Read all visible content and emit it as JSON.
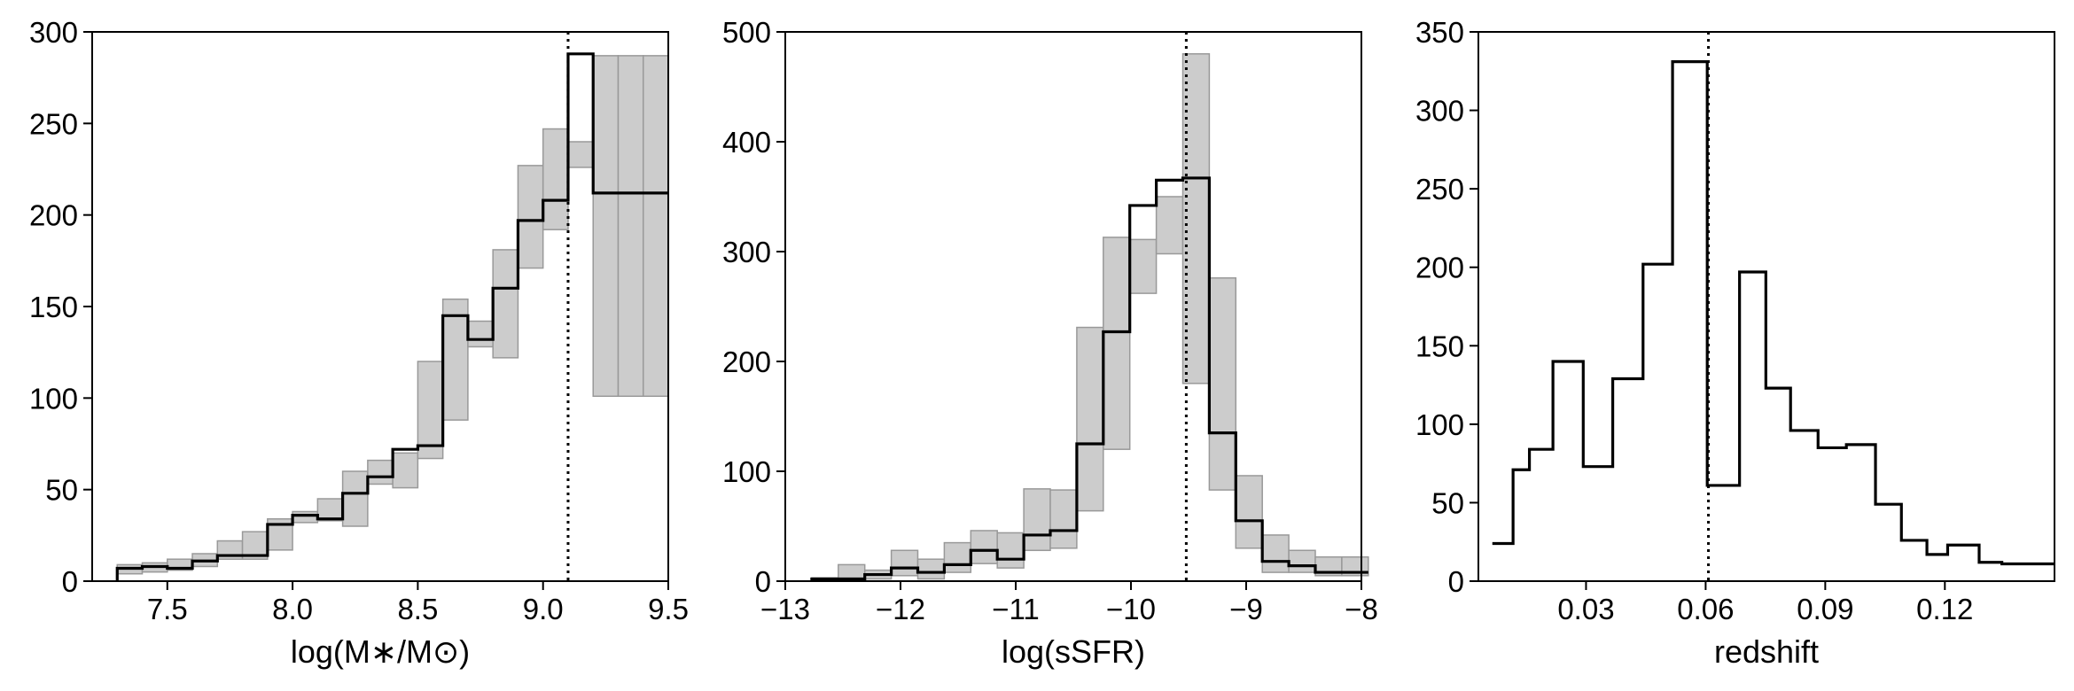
{
  "figure": {
    "background": "#ffffff",
    "line_color": "#000000",
    "band_fill": "#cccccc",
    "band_stroke": "#999999"
  },
  "chart_data": [
    {
      "type": "histogram",
      "title": "",
      "xlabel": "log(M∗/M⊙)",
      "ylabel": "",
      "xlim": [
        7.2,
        9.5
      ],
      "ylim": [
        0,
        300
      ],
      "xticks": [
        7.5,
        8.0,
        8.5,
        9.0,
        9.5
      ],
      "xtick_labels": [
        "7.5",
        "8.0",
        "8.5",
        "9.0",
        "9.5"
      ],
      "yticks": [
        0,
        50,
        100,
        150,
        200,
        250,
        300
      ],
      "ytick_labels": [
        "0",
        "50",
        "100",
        "150",
        "200",
        "250",
        "300"
      ],
      "vline": 9.1,
      "bin_edges": [
        7.3,
        7.4,
        7.5,
        7.6,
        7.7,
        7.8,
        7.9,
        8.0,
        8.1,
        8.2,
        8.3,
        8.4,
        8.5,
        8.6,
        8.7,
        8.8,
        8.9,
        9.0,
        9.1,
        9.2,
        9.3,
        9.4,
        9.5
      ],
      "counts": [
        7,
        8,
        7,
        11,
        14,
        14,
        31,
        36,
        34,
        48,
        57,
        72,
        74,
        145,
        132,
        160,
        197,
        208,
        288,
        212,
        212,
        212
      ],
      "band_low": [
        4,
        5,
        6,
        8,
        12,
        12,
        17,
        32,
        33,
        30,
        53,
        51,
        67,
        88,
        128,
        122,
        171,
        192,
        226,
        101,
        101,
        101
      ],
      "band_high": [
        9,
        10,
        12,
        15,
        22,
        27,
        34,
        38,
        45,
        60,
        66,
        70,
        120,
        154,
        142,
        181,
        227,
        247,
        240,
        287,
        287,
        287
      ]
    },
    {
      "type": "histogram",
      "title": "",
      "xlabel": "log(sSFR)",
      "ylabel": "",
      "xlim": [
        -13,
        -8
      ],
      "ylim": [
        0,
        500
      ],
      "xticks": [
        -13,
        -12,
        -11,
        -10,
        -9,
        -8
      ],
      "xtick_labels": [
        "−13",
        "−12",
        "−11",
        "−10",
        "−9",
        "−8"
      ],
      "yticks": [
        0,
        100,
        200,
        300,
        400,
        500
      ],
      "ytick_labels": [
        "0",
        "100",
        "200",
        "300",
        "400",
        "500"
      ],
      "vline": -9.52,
      "bin_edges": [
        -12.77,
        -12.54,
        -12.31,
        -12.08,
        -11.85,
        -11.62,
        -11.39,
        -11.16,
        -10.93,
        -10.7,
        -10.47,
        -10.24,
        -10.01,
        -9.78,
        -9.55,
        -9.32,
        -9.09,
        -8.86,
        -8.63,
        -8.4,
        -8.17,
        -7.94
      ],
      "counts": [
        2,
        2,
        6,
        12,
        8,
        15,
        28,
        20,
        42,
        46,
        125,
        227,
        342,
        365,
        367,
        135,
        55,
        18,
        14,
        8,
        8
      ],
      "band_low": [
        0,
        0,
        2,
        5,
        2,
        8,
        16,
        12,
        28,
        30,
        64,
        120,
        262,
        298,
        180,
        83,
        30,
        8,
        8,
        5,
        5
      ],
      "band_high": [
        3,
        15,
        10,
        28,
        20,
        35,
        46,
        44,
        84,
        83,
        231,
        313,
        311,
        350,
        480,
        276,
        96,
        42,
        28,
        22,
        22
      ]
    },
    {
      "type": "histogram",
      "title": "",
      "xlabel": "redshift",
      "ylabel": "",
      "xlim": [
        0.003,
        0.1475
      ],
      "ylim": [
        0,
        350
      ],
      "xticks": [
        0.03,
        0.06,
        0.09,
        0.12
      ],
      "xtick_labels": [
        "0.03",
        "0.06",
        "0.09",
        "0.12"
      ],
      "yticks": [
        0,
        50,
        100,
        150,
        200,
        250,
        300,
        350
      ],
      "ytick_labels": [
        "0",
        "50",
        "100",
        "150",
        "200",
        "250",
        "300",
        "350"
      ],
      "vline": 0.0607,
      "bin_edges": [
        0.0065,
        0.0117,
        0.0158,
        0.0217,
        0.0293,
        0.0367,
        0.0443,
        0.0517,
        0.0604,
        0.0685,
        0.0751,
        0.0813,
        0.0882,
        0.0953,
        0.1026,
        0.1091,
        0.1155,
        0.1207,
        0.1286,
        0.1343,
        0.1393,
        0.1475
      ],
      "counts": [
        24,
        71,
        84,
        140,
        73,
        129,
        202,
        331,
        61,
        197,
        123,
        96,
        85,
        87,
        49,
        26,
        17,
        23,
        12,
        11,
        11
      ],
      "start_count": 24
    }
  ]
}
